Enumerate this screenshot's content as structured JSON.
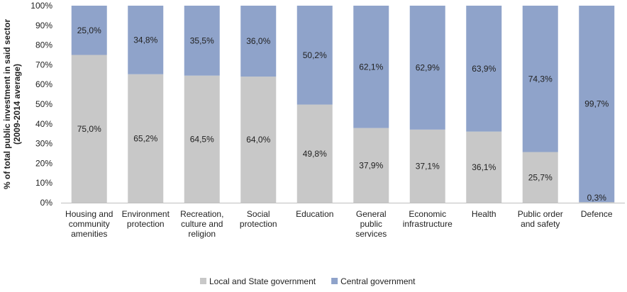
{
  "chart_data": {
    "type": "bar",
    "stacked": true,
    "categories": [
      [
        "Housing and",
        "community",
        "amenities"
      ],
      [
        "Environment",
        "protection"
      ],
      [
        "Recreation,",
        "culture and",
        "religion"
      ],
      [
        "Social",
        "protection"
      ],
      [
        "Education"
      ],
      [
        "General",
        "public",
        "services"
      ],
      [
        "Economic",
        "infrastructure"
      ],
      [
        "Health"
      ],
      [
        "Public order",
        "and safety"
      ],
      [
        "Defence"
      ]
    ],
    "series": [
      {
        "name": "Local and State government",
        "color": "#c8c8c8",
        "values": [
          75.0,
          65.2,
          64.5,
          64.0,
          49.8,
          37.9,
          37.1,
          36.1,
          25.7,
          0.3
        ],
        "labels": [
          "75,0%",
          "65,2%",
          "64,5%",
          "64,0%",
          "49,8%",
          "37,9%",
          "37,1%",
          "36,1%",
          "25,7%",
          "0,3%"
        ]
      },
      {
        "name": "Central government",
        "color": "#8fa3ca",
        "values": [
          25.0,
          34.8,
          35.5,
          36.0,
          50.2,
          62.1,
          62.9,
          63.9,
          74.3,
          99.7
        ],
        "labels": [
          "25,0%",
          "34,8%",
          "35,5%",
          "36,0%",
          "50,2%",
          "62,1%",
          "62,9%",
          "63,9%",
          "74,3%",
          "99,7%"
        ]
      }
    ],
    "ylabel": [
      "% of total public investment in said sector",
      "(2009-2014 average)"
    ],
    "ylim": [
      0,
      100
    ],
    "yticks": [
      "0%",
      "10%",
      "20%",
      "30%",
      "40%",
      "50%",
      "60%",
      "70%",
      "80%",
      "90%",
      "100%"
    ],
    "legend_position": "bottom",
    "grid": false
  }
}
